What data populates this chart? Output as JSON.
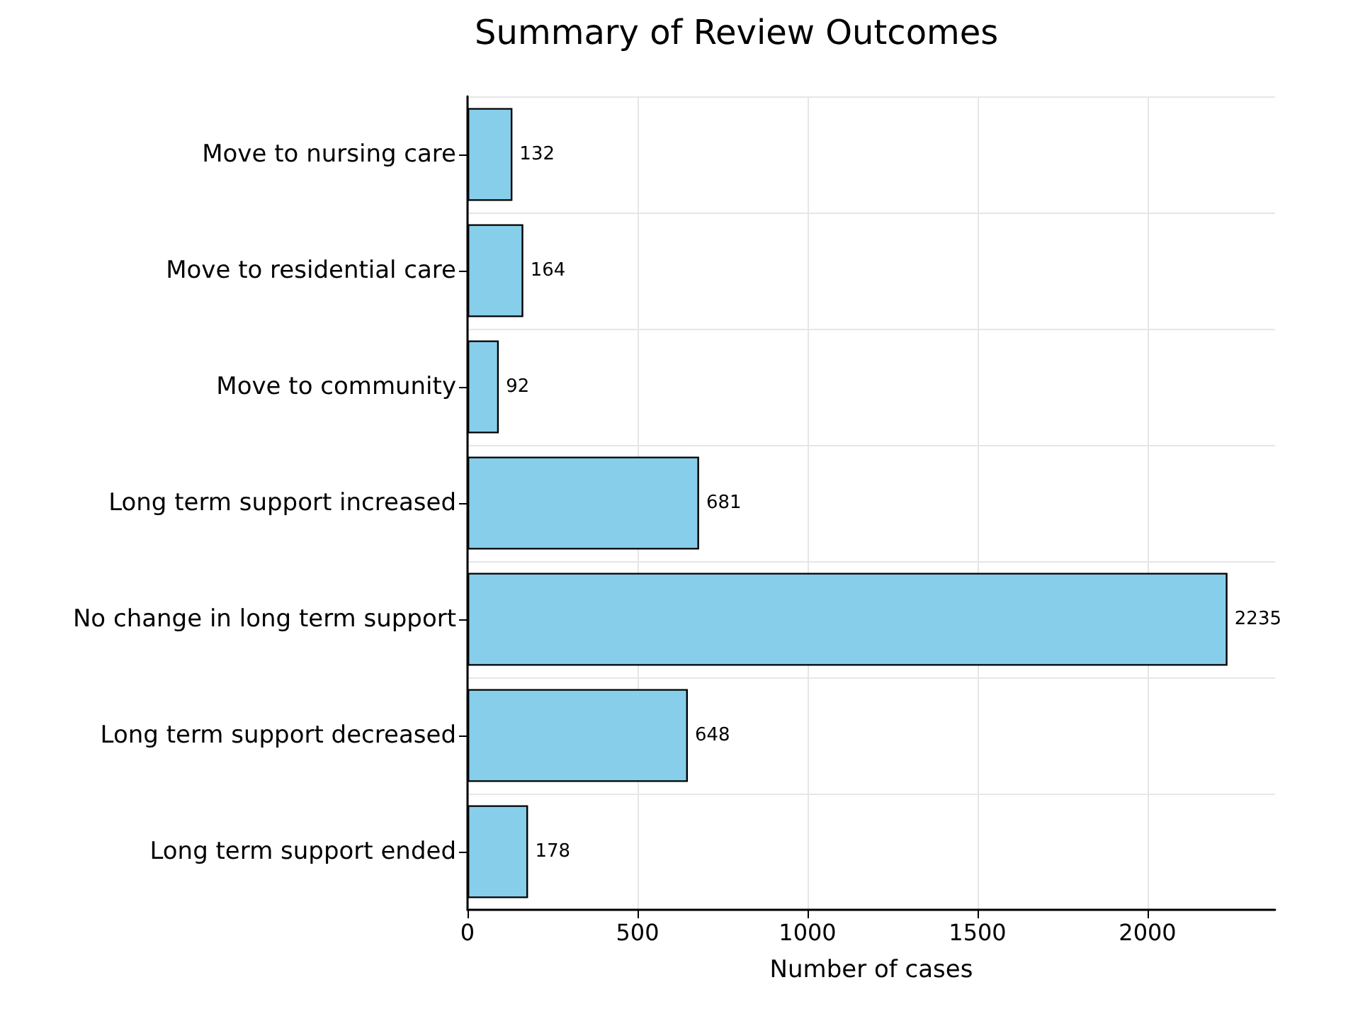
{
  "chart_data": {
    "type": "bar",
    "orientation": "horizontal",
    "title": "Summary of Review Outcomes",
    "xlabel": "Number of cases",
    "categories": [
      "Move to nursing care",
      "Move to residential care",
      "Move to community",
      "Long term support increased",
      "No change in long term support",
      "Long term support decreased",
      "Long term support ended"
    ],
    "values": [
      132,
      164,
      92,
      681,
      2235,
      648,
      178
    ],
    "color": "#87ceeb",
    "xlim": [
      0,
      2375
    ],
    "xticks": [
      0,
      500,
      1000,
      1500,
      2000
    ],
    "grid": true,
    "data_labels": true
  }
}
